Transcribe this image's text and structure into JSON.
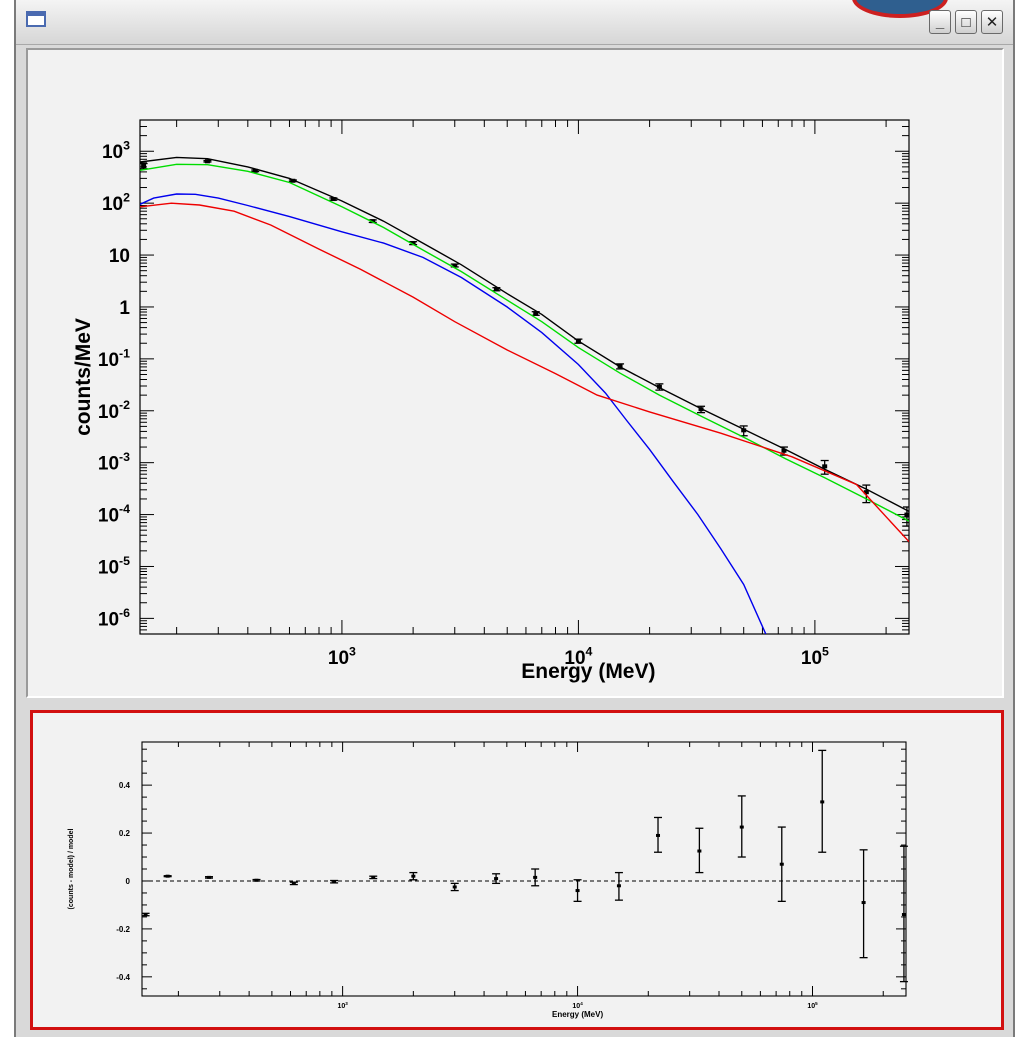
{
  "window": {
    "minimize_glyph": "_",
    "maximize_glyph": "□",
    "close_glyph": "✕"
  },
  "chart_data": [
    {
      "type": "line",
      "log_x": true,
      "log_y": true,
      "xlabel": "Energy (MeV)",
      "ylabel": "counts/MeV",
      "xlim": [
        140,
        250000
      ],
      "ylim": [
        5e-07,
        4000
      ],
      "x_ticks": [
        1000,
        10000,
        100000
      ],
      "x_tick_labels": [
        {
          "base": "10",
          "exp": "3"
        },
        {
          "base": "10",
          "exp": "4"
        },
        {
          "base": "10",
          "exp": "5"
        }
      ],
      "y_ticks": [
        1000.0,
        100.0,
        10,
        1,
        0.1,
        0.01,
        0.001,
        0.0001,
        1e-05,
        1e-06
      ],
      "y_tick_labels": [
        {
          "base": "10",
          "exp": "3"
        },
        {
          "base": "10",
          "exp": "2"
        },
        {
          "base": "10",
          "exp": ""
        },
        {
          "base": "1",
          "exp": ""
        },
        {
          "base": "10",
          "exp": "-1"
        },
        {
          "base": "10",
          "exp": "-2"
        },
        {
          "base": "10",
          "exp": "-3"
        },
        {
          "base": "10",
          "exp": "-4"
        },
        {
          "base": "10",
          "exp": "-5"
        },
        {
          "base": "10",
          "exp": "-6"
        }
      ],
      "series": [
        {
          "color": "#000000",
          "style": "points-with-errors",
          "points": [
            {
              "x": 145,
              "y": 520,
              "err": 60
            },
            {
              "x": 270,
              "y": 640,
              "err": 20
            },
            {
              "x": 430,
              "y": 420,
              "err": 15
            },
            {
              "x": 620,
              "y": 270,
              "err": 10
            },
            {
              "x": 920,
              "y": 120,
              "err": 6
            },
            {
              "x": 1350,
              "y": 45,
              "err": 2.5
            },
            {
              "x": 2000,
              "y": 17,
              "err": 1.1
            },
            {
              "x": 3000,
              "y": 6.3,
              "err": 0.4
            },
            {
              "x": 4500,
              "y": 2.2,
              "err": 0.15
            },
            {
              "x": 6600,
              "y": 0.75,
              "err": 0.06
            },
            {
              "x": 10000,
              "y": 0.22,
              "err": 0.02
            },
            {
              "x": 15000,
              "y": 0.072,
              "err": 0.008
            },
            {
              "x": 22000,
              "y": 0.029,
              "err": 0.004
            },
            {
              "x": 33000,
              "y": 0.0107,
              "err": 0.0015
            },
            {
              "x": 50000,
              "y": 0.0042,
              "err": 0.0009
            },
            {
              "x": 74000,
              "y": 0.0017,
              "err": 0.0003
            },
            {
              "x": 110000,
              "y": 0.00085,
              "err": 0.00025
            },
            {
              "x": 165000,
              "y": 0.00027,
              "err": 0.0001
            },
            {
              "x": 245000,
              "y": 0.0001,
              "err": 4e-05
            }
          ]
        },
        {
          "color": "#000000",
          "style": "line",
          "points": [
            [
              140,
              620
            ],
            [
              200,
              760
            ],
            [
              270,
              720
            ],
            [
              400,
              500
            ],
            [
              600,
              300
            ],
            [
              1000,
              110
            ],
            [
              1500,
              45
            ],
            [
              2200,
              17
            ],
            [
              3200,
              6.5
            ],
            [
              5000,
              1.8
            ],
            [
              7000,
              0.72
            ],
            [
              10000,
              0.22
            ],
            [
              15000,
              0.07
            ],
            [
              22000,
              0.028
            ],
            [
              33000,
              0.011
            ],
            [
              50000,
              0.0044
            ],
            [
              75000,
              0.0018
            ],
            [
              110000,
              0.00075
            ],
            [
              165000,
              0.00031
            ],
            [
              250000,
              0.000115
            ]
          ]
        },
        {
          "color": "#00dd00",
          "style": "line",
          "points": [
            [
              140,
              430
            ],
            [
              200,
              560
            ],
            [
              270,
              550
            ],
            [
              400,
              410
            ],
            [
              600,
              250
            ],
            [
              1000,
              85
            ],
            [
              1500,
              34
            ],
            [
              2200,
              12.5
            ],
            [
              3200,
              4.8
            ],
            [
              5000,
              1.35
            ],
            [
              7000,
              0.52
            ],
            [
              10000,
              0.165
            ],
            [
              15000,
              0.053
            ],
            [
              22000,
              0.02
            ],
            [
              33000,
              0.0079
            ],
            [
              50000,
              0.0031
            ],
            [
              75000,
              0.0012
            ],
            [
              110000,
              0.00051
            ],
            [
              165000,
              0.0002
            ],
            [
              250000,
              7.5e-05
            ]
          ]
        },
        {
          "color": "#0000ee",
          "style": "line",
          "points": [
            [
              140,
              95
            ],
            [
              160,
              125
            ],
            [
              200,
              150
            ],
            [
              240,
              148
            ],
            [
              300,
              125
            ],
            [
              400,
              90
            ],
            [
              600,
              55
            ],
            [
              1000,
              28
            ],
            [
              1500,
              17
            ],
            [
              2200,
              9
            ],
            [
              3200,
              3.7
            ],
            [
              5000,
              1.0
            ],
            [
              7000,
              0.32
            ],
            [
              10000,
              0.078
            ],
            [
              13000,
              0.022
            ],
            [
              16000,
              0.0065
            ],
            [
              20000,
              0.0018
            ],
            [
              25000,
              0.00045
            ],
            [
              32000,
              0.0001
            ],
            [
              40000,
              2.2e-05
            ],
            [
              50000,
              4.5e-06
            ],
            [
              62000,
              5e-07
            ]
          ]
        },
        {
          "color": "#ee0000",
          "style": "line",
          "points": [
            [
              140,
              85
            ],
            [
              190,
              100
            ],
            [
              250,
              92
            ],
            [
              350,
              70
            ],
            [
              500,
              38
            ],
            [
              800,
              13
            ],
            [
              1200,
              5.3
            ],
            [
              2000,
              1.55
            ],
            [
              3000,
              0.52
            ],
            [
              5000,
              0.148
            ],
            [
              8000,
              0.052
            ],
            [
              12000,
              0.02
            ],
            [
              20000,
              0.0095
            ],
            [
              40000,
              0.0037
            ],
            [
              80000,
              0.0013
            ],
            [
              150000,
              0.00038
            ],
            [
              250000,
              3e-05
            ]
          ]
        }
      ]
    },
    {
      "type": "scatter",
      "log_x": true,
      "xlabel": "Energy (MeV)",
      "ylabel": "(counts - model) / model",
      "xlim": [
        140,
        250000
      ],
      "ylim": [
        -0.48,
        0.58
      ],
      "x_ticks": [
        1000,
        10000,
        100000
      ],
      "x_tick_labels": [
        {
          "base": "10",
          "exp": "3"
        },
        {
          "base": "10",
          "exp": "4"
        },
        {
          "base": "10",
          "exp": "5"
        }
      ],
      "y_ticks": [
        -0.4,
        -0.2,
        0,
        0.2,
        0.4
      ],
      "y_tick_labels": [
        "-0.4",
        "-0.2",
        "0",
        "0.2",
        "0.4"
      ],
      "reference_line": 0,
      "points": [
        {
          "x": 145,
          "y": -0.14,
          "lo": -0.145,
          "hi": -0.135
        },
        {
          "x": 180,
          "y": 0.02,
          "lo": 0.018,
          "hi": 0.022
        },
        {
          "x": 270,
          "y": 0.015,
          "lo": 0.012,
          "hi": 0.018
        },
        {
          "x": 430,
          "y": 0.003,
          "lo": 0.0,
          "hi": 0.006
        },
        {
          "x": 620,
          "y": -0.01,
          "lo": -0.015,
          "hi": -0.005
        },
        {
          "x": 920,
          "y": -0.003,
          "lo": -0.008,
          "hi": 0.002
        },
        {
          "x": 1350,
          "y": 0.015,
          "lo": 0.01,
          "hi": 0.02
        },
        {
          "x": 2000,
          "y": 0.02,
          "lo": 0.005,
          "hi": 0.035
        },
        {
          "x": 3000,
          "y": -0.025,
          "lo": -0.04,
          "hi": -0.01
        },
        {
          "x": 4500,
          "y": 0.01,
          "lo": -0.01,
          "hi": 0.03
        },
        {
          "x": 6600,
          "y": 0.015,
          "lo": -0.02,
          "hi": 0.05
        },
        {
          "x": 10000,
          "y": -0.04,
          "lo": -0.085,
          "hi": 0.005
        },
        {
          "x": 15000,
          "y": -0.02,
          "lo": -0.08,
          "hi": 0.035
        },
        {
          "x": 22000,
          "y": 0.19,
          "lo": 0.12,
          "hi": 0.265
        },
        {
          "x": 33000,
          "y": 0.125,
          "lo": 0.035,
          "hi": 0.22
        },
        {
          "x": 50000,
          "y": 0.225,
          "lo": 0.1,
          "hi": 0.355
        },
        {
          "x": 74000,
          "y": 0.07,
          "lo": -0.085,
          "hi": 0.225
        },
        {
          "x": 110000,
          "y": 0.33,
          "lo": 0.12,
          "hi": 0.545
        },
        {
          "x": 165000,
          "y": -0.09,
          "lo": -0.32,
          "hi": 0.13
        },
        {
          "x": 245000,
          "y": -0.14,
          "lo": -0.42,
          "hi": 0.145
        }
      ]
    }
  ]
}
